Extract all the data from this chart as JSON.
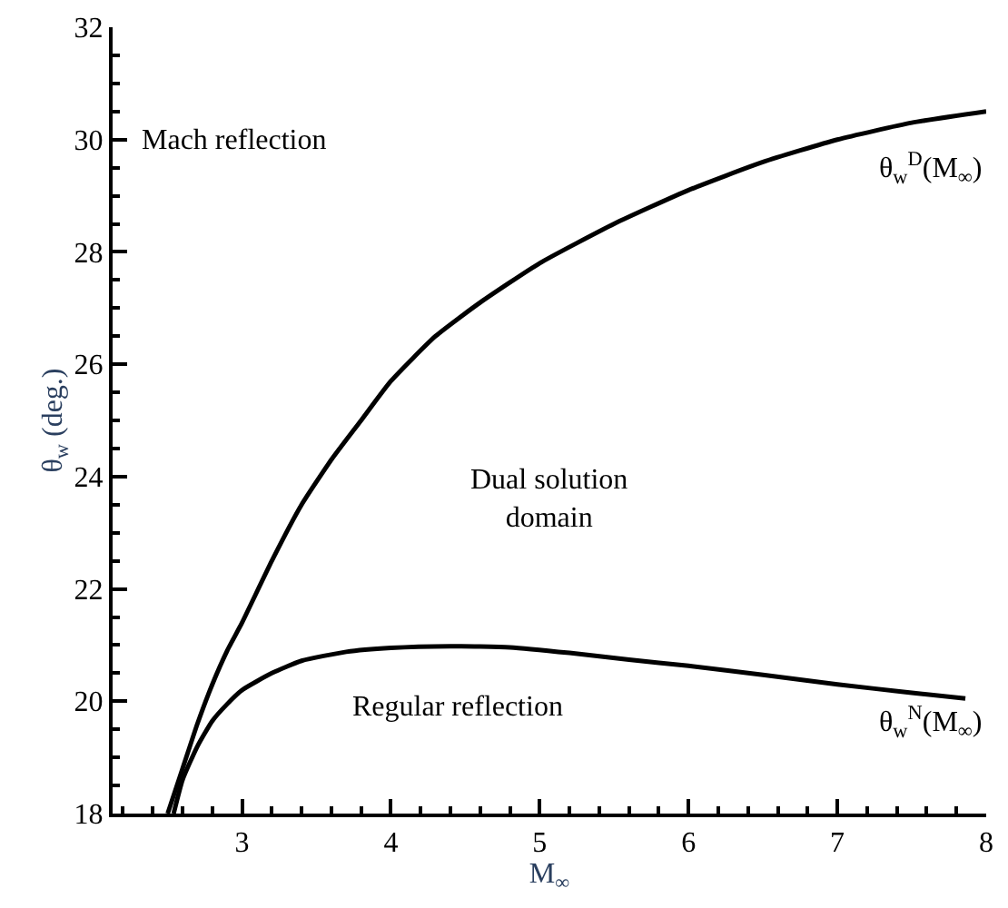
{
  "chart_data": {
    "type": "line",
    "xlabel": "M$_{∞}$",
    "ylabel": "θ$_{w}$ (deg.)",
    "xlim": [
      2.13,
      8.0
    ],
    "xticks": [
      3,
      4,
      5,
      6,
      7,
      8
    ],
    "ylim": [
      18,
      32
    ],
    "yticks": [
      18,
      20,
      22,
      24,
      26,
      28,
      30,
      32
    ],
    "marker": "none",
    "line_style": "solid",
    "series": [
      {
        "color": "#000000",
        "x": [
          2.5,
          2.6,
          2.7,
          2.8,
          2.9,
          3.0,
          3.2,
          3.4,
          3.6,
          3.8,
          4.0,
          4.3,
          4.6,
          5.0,
          5.5,
          6.0,
          6.5,
          7.0,
          7.5,
          8.0
        ],
        "values": [
          18,
          18.8,
          19.6,
          20.3,
          20.9,
          21.4,
          22.5,
          23.5,
          24.3,
          25.0,
          25.7,
          26.5,
          27.1,
          27.8,
          28.5,
          29.1,
          29.6,
          30.0,
          30.3,
          30.5
        ]
      },
      {
        "color": "#000000",
        "x": [
          2.54,
          2.6,
          2.7,
          2.8,
          2.9,
          3.0,
          3.2,
          3.4,
          3.7,
          4.0,
          4.4,
          4.8,
          5.2,
          5.6,
          6.0,
          6.5,
          7.0,
          7.5,
          7.86
        ],
        "values": [
          18,
          18.6,
          19.2,
          19.65,
          19.95,
          20.2,
          20.5,
          20.72,
          20.88,
          20.95,
          20.98,
          20.96,
          20.86,
          20.74,
          20.63,
          20.47,
          20.3,
          20.15,
          20.05
        ]
      }
    ],
    "annotations": [
      "Mach reflection",
      "Dual solution\ndomain",
      "Regular reflection",
      "θ$_{w}$$^{D}$(M$_{∞}$)",
      "θ$_{w}$$^{N}$(M$_{∞}$)"
    ]
  }
}
